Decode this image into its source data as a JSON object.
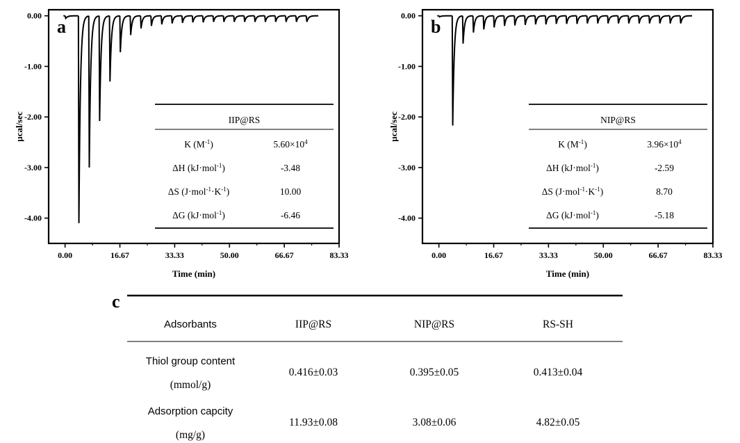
{
  "chart_data": [
    {
      "type": "line",
      "panel_label": "a",
      "xlabel": "Time (min)",
      "ylabel": "µcal/sec",
      "x_ticks": [
        "0.00",
        "16.67",
        "33.33",
        "50.00",
        "66.67",
        "83.33"
      ],
      "y_ticks": [
        "0.00",
        "-1.00",
        "-2.00",
        "-3.00",
        "-4.00"
      ],
      "xlim": [
        -5,
        83.33
      ],
      "ylim": [
        -4.5,
        0.12
      ],
      "series": [
        {
          "injection_times": [
            0,
            4.05,
            7.2,
            10.35,
            13.5,
            16.65,
            19.8,
            22.95,
            26.1,
            29.25,
            32.4,
            35.55,
            38.7,
            41.85,
            45,
            48.15,
            51.3,
            54.45,
            57.6,
            60.75,
            63.9,
            67.05,
            70.2,
            73.35
          ],
          "peak_minima": [
            -0.05,
            -4.1,
            -3.0,
            -2.08,
            -1.3,
            -0.72,
            -0.38,
            -0.25,
            -0.2,
            -0.17,
            -0.15,
            -0.14,
            -0.13,
            -0.13,
            -0.12,
            -0.12,
            -0.12,
            -0.12,
            -0.12,
            -0.12,
            -0.12,
            -0.12,
            -0.12,
            -0.12
          ],
          "baseline": 0.0,
          "end_time": 77
        }
      ],
      "inset_table": {
        "header": "IIP@RS",
        "rows": [
          {
            "param": "K (M",
            "sup": "-1",
            "param_end": ")",
            "value": "5.60×10",
            "value_sup": "4"
          },
          {
            "param": "ΔH (kJ·mol",
            "sup": "-1",
            "param_end": ")",
            "value": "-3.48",
            "value_sup": ""
          },
          {
            "param": "ΔS (J·mol",
            "sup": "-1",
            "param_mid": "·K",
            "sup2": "-1",
            "param_end": ")",
            "value": "10.00",
            "value_sup": ""
          },
          {
            "param": "ΔG (kJ·mol",
            "sup": "-1",
            "param_end": ")",
            "value": "-6.46",
            "value_sup": ""
          }
        ]
      }
    },
    {
      "type": "line",
      "panel_label": "b",
      "xlabel": "Time (min)",
      "ylabel": "µcal/sec",
      "x_ticks": [
        "0.00",
        "16.67",
        "33.33",
        "50.00",
        "66.67",
        "83.33"
      ],
      "y_ticks": [
        "0.00",
        "-1.00",
        "-2.00",
        "-3.00",
        "-4.00"
      ],
      "xlim": [
        -5,
        83.33
      ],
      "ylim": [
        -4.5,
        0.12
      ],
      "series": [
        {
          "injection_times": [
            0,
            4.05,
            7.2,
            10.35,
            13.5,
            16.65,
            19.8,
            22.95,
            26.1,
            29.25,
            32.4,
            35.55,
            38.7,
            41.85,
            45,
            48.15,
            51.3,
            54.45,
            57.6,
            60.75,
            63.9,
            67.05,
            70.2,
            73.35
          ],
          "peak_minima": [
            -0.02,
            -2.17,
            -0.55,
            -0.33,
            -0.27,
            -0.23,
            -0.2,
            -0.19,
            -0.18,
            -0.17,
            -0.17,
            -0.16,
            -0.16,
            -0.16,
            -0.15,
            -0.15,
            -0.15,
            -0.15,
            -0.15,
            -0.15,
            -0.15,
            -0.15,
            -0.15,
            -0.15
          ],
          "baseline": 0.0,
          "end_time": 77
        }
      ],
      "inset_table": {
        "header": "NIP@RS",
        "rows": [
          {
            "param": "K (M",
            "sup": "-1",
            "param_end": ")",
            "value": "3.96×10",
            "value_sup": "4"
          },
          {
            "param": "ΔH (kJ·mol",
            "sup": "-1",
            "param_end": ")",
            "value": "-2.59",
            "value_sup": ""
          },
          {
            "param": "ΔS (J·mol",
            "sup": "-1",
            "param_mid": "·K",
            "sup2": "-1",
            "param_end": ")",
            "value": "8.70",
            "value_sup": ""
          },
          {
            "param": "ΔG (kJ·mol",
            "sup": "-1",
            "param_end": ")",
            "value": "-5.18",
            "value_sup": ""
          }
        ]
      }
    },
    {
      "type": "table",
      "panel_label": "c",
      "columns": [
        "Adsorbants",
        "IIP@RS",
        "NIP@RS",
        "RS-SH"
      ],
      "rows": [
        {
          "label_line1": "Thiol group content",
          "label_line2": "(mmol/g)",
          "values": [
            "0.416±0.03",
            "0.395±0.05",
            "0.413±0.04"
          ]
        },
        {
          "label_line1": "Adsorption capcity",
          "label_line2": "(mg/g)",
          "values": [
            "11.93±0.08",
            "3.08±0.06",
            "4.82±0.05"
          ]
        }
      ]
    }
  ]
}
